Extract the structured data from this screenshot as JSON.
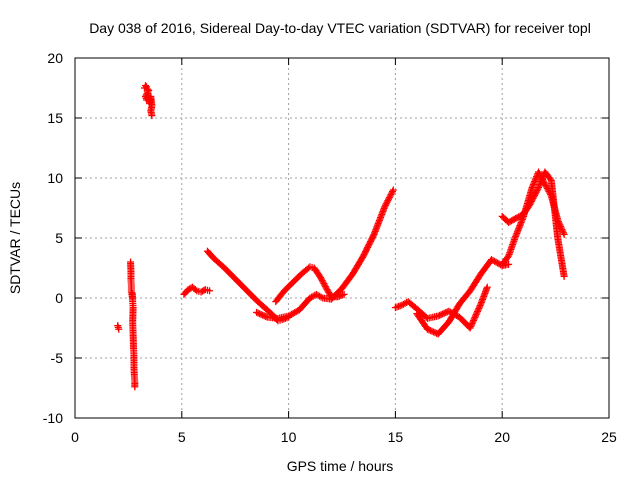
{
  "chart_data": {
    "type": "scatter",
    "title": "Day 038 of 2016, Sidereal Day-to-day VTEC variation (SDTVAR) for receiver topl",
    "xlabel": "GPS time / hours",
    "ylabel": "SDTVAR / TECUs",
    "xlim": [
      0,
      25
    ],
    "ylim": [
      -10,
      20
    ],
    "xticks": [
      0,
      5,
      10,
      15,
      20,
      25
    ],
    "yticks": [
      -10,
      -5,
      0,
      5,
      10,
      15,
      20
    ],
    "xtick_labels": [
      "0",
      "5",
      "10",
      "15",
      "20",
      "25"
    ],
    "ytick_labels": [
      "-10",
      "-5",
      "0",
      "5",
      "10",
      "15",
      "20"
    ],
    "grid": true,
    "marker": "+",
    "color": "#ff0000",
    "series": [
      {
        "name": "early-isolated",
        "x": [
          2.0,
          2.05
        ],
        "y": [
          -2.3,
          -2.6
        ]
      },
      {
        "name": "vertical-cluster",
        "x": [
          2.6,
          2.62,
          2.62,
          2.64,
          2.64,
          2.66,
          2.68,
          2.68,
          2.7,
          2.72,
          2.7,
          2.72,
          2.74,
          2.76,
          2.76,
          2.78,
          2.8,
          2.8
        ],
        "y": [
          3.0,
          2.2,
          1.5,
          1.0,
          0.5,
          0.3,
          0.1,
          0.4,
          -0.3,
          -0.8,
          -2.0,
          -3.0,
          -4.2,
          -4.8,
          -5.8,
          -6.5,
          -7.0,
          -7.4
        ]
      },
      {
        "name": "high-cluster",
        "x": [
          3.25,
          3.3,
          3.35,
          3.4,
          3.45,
          3.3,
          3.35,
          3.42,
          3.48,
          3.5,
          3.55,
          3.6,
          3.55,
          3.6
        ],
        "y": [
          17.5,
          17.7,
          17.6,
          17.4,
          17.3,
          16.8,
          16.5,
          16.9,
          16.6,
          16.2,
          16.8,
          16.0,
          15.6,
          15.2
        ]
      },
      {
        "name": "arc-early",
        "x": [
          5.1,
          5.3,
          5.5,
          5.7,
          5.9,
          6.1,
          6.3
        ],
        "y": [
          0.3,
          0.7,
          0.9,
          0.6,
          0.5,
          0.7,
          0.6
        ]
      },
      {
        "name": "arc-1",
        "x": [
          6.2,
          6.5,
          7.0,
          7.5,
          8.0,
          8.5,
          9.0,
          9.3,
          9.5,
          9.7,
          10.0
        ],
        "y": [
          3.9,
          3.3,
          2.5,
          1.6,
          0.7,
          -0.2,
          -1.0,
          -1.5,
          -1.9,
          -1.8,
          -1.6
        ]
      },
      {
        "name": "arc-2",
        "x": [
          8.5,
          9.0,
          9.5,
          10.0,
          10.5,
          11.0,
          11.3,
          11.6,
          12.0,
          12.5,
          13.0,
          13.5,
          14.0,
          14.5,
          14.9
        ],
        "y": [
          -1.2,
          -1.6,
          -1.7,
          -1.5,
          -1.0,
          0.0,
          0.3,
          0.0,
          -0.1,
          0.8,
          2.0,
          3.5,
          5.3,
          7.6,
          9.0
        ]
      },
      {
        "name": "arc-3",
        "x": [
          9.4,
          9.8,
          10.2,
          10.6,
          11.0,
          11.2,
          11.5,
          11.8,
          12.0,
          12.3,
          12.6
        ],
        "y": [
          -0.3,
          0.6,
          1.3,
          2.0,
          2.6,
          2.5,
          1.7,
          0.7,
          0.1,
          0.1,
          0.3
        ]
      },
      {
        "name": "arc-4",
        "x": [
          15.0,
          15.3,
          15.6,
          16.0,
          16.5,
          17.0,
          17.5,
          18.0,
          18.5,
          19.0,
          19.3
        ],
        "y": [
          -0.8,
          -0.6,
          -0.3,
          -0.9,
          -1.7,
          -1.5,
          -1.1,
          -1.6,
          -2.5,
          -0.5,
          0.9
        ]
      },
      {
        "name": "arc-5",
        "x": [
          16.0,
          16.5,
          17.0,
          17.5,
          18.0,
          18.5,
          19.0,
          19.5,
          20.0,
          20.3
        ],
        "y": [
          -1.3,
          -2.6,
          -3.0,
          -2.0,
          -0.5,
          0.6,
          2.0,
          3.2,
          2.7,
          2.8
        ]
      },
      {
        "name": "arc-6",
        "x": [
          20.0,
          20.3,
          20.6,
          21.0,
          21.4,
          21.7,
          22.0,
          22.3,
          22.6,
          22.9
        ],
        "y": [
          2.8,
          3.5,
          5.0,
          6.8,
          9.2,
          10.5,
          9.5,
          8.5,
          6.5,
          5.3
        ]
      },
      {
        "name": "arc-7",
        "x": [
          20.0,
          20.3,
          20.7,
          21.0,
          21.3,
          21.7,
          22.0,
          22.3,
          22.6,
          22.9
        ],
        "y": [
          6.8,
          6.3,
          6.7,
          7.0,
          7.8,
          9.2,
          10.5,
          9.8,
          5.0,
          1.8
        ]
      }
    ]
  }
}
